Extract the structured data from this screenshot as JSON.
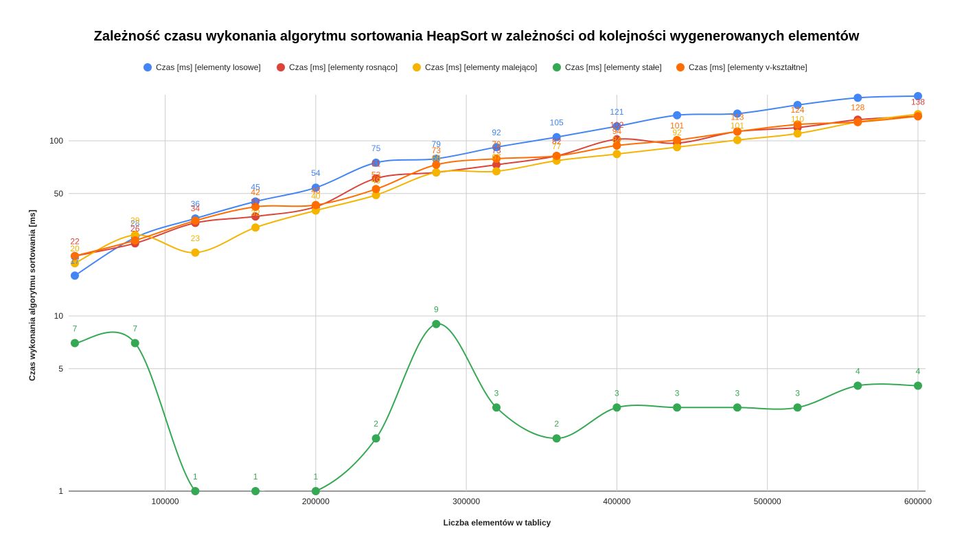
{
  "chart_data": {
    "type": "line",
    "title": "Zależność czasu wykonania algorytmu sortowania HeapSort w zależności od kolejności wygenerowanych elementów",
    "xlabel": "Liczba elementów w tablicy",
    "ylabel": "Czas wykonania algorytmu sortowania [ms]",
    "yscale": "log",
    "ylim": [
      1,
      150
    ],
    "xlim": [
      40000,
      600000
    ],
    "x": [
      40000,
      80000,
      120000,
      160000,
      200000,
      240000,
      280000,
      320000,
      360000,
      400000,
      440000,
      480000,
      520000,
      560000,
      600000
    ],
    "x_ticks": [
      100000,
      200000,
      300000,
      400000,
      500000,
      600000
    ],
    "x_tick_labels": [
      "100000",
      "200000",
      "300000",
      "400000",
      "500000",
      "600000"
    ],
    "y_ticks": [
      1,
      5,
      10,
      50,
      100
    ],
    "y_tick_labels": [
      "1",
      "5",
      "10",
      "50",
      "100"
    ],
    "grid": true,
    "legend_position": "top",
    "series": [
      {
        "name": "Czas [ms] [elementy losowe]",
        "color": "#4285f4",
        "values": [
          17,
          28,
          36,
          45,
          54,
          75,
          79,
          92,
          105,
          121,
          140,
          143,
          160,
          176,
          180
        ],
        "labels": [
          "17",
          "28",
          "36",
          "45",
          "54",
          "75",
          "79",
          "92",
          "105",
          "121",
          "",
          "",
          "",
          "",
          ""
        ]
      },
      {
        "name": "Czas [ms] [elementy rosnąco]",
        "color": "#db4437",
        "values": [
          22,
          26,
          34,
          37,
          42,
          61,
          66,
          73,
          82,
          102,
          97,
          113,
          119,
          132,
          138
        ],
        "labels": [
          "22",
          "26",
          "34",
          "37",
          "",
          "61",
          "",
          "73",
          "82",
          "102",
          "",
          "",
          "",
          "",
          "138"
        ]
      },
      {
        "name": "Czas [ms] [elementy malejąco]",
        "color": "#f4b400",
        "values": [
          20,
          29,
          23,
          32,
          40,
          49,
          66,
          67,
          77,
          84,
          92,
          101,
          110,
          128,
          142
        ],
        "labels": [
          "20",
          "29",
          "23",
          "32",
          "40",
          "49",
          "66",
          "67",
          "77",
          "84",
          "92",
          "101",
          "110",
          "",
          ""
        ]
      },
      {
        "name": "Czas [ms] [elementy stałe]",
        "color": "#34a853",
        "values": [
          7,
          7,
          1,
          1,
          1,
          2,
          9,
          3,
          2,
          3,
          3,
          3,
          3,
          4,
          4
        ],
        "labels": [
          "7",
          "7",
          "1",
          "1",
          "1",
          "2",
          "9",
          "3",
          "2",
          "3",
          "3",
          "3",
          "3",
          "4",
          "4"
        ]
      },
      {
        "name": "Czas [ms] [elementy v-kształtne]",
        "color": "#ff6d01",
        "values": [
          22,
          27,
          35,
          42,
          43,
          53,
          73,
          79,
          82,
          94,
          101,
          113,
          124,
          128,
          138
        ],
        "labels": [
          "",
          "",
          "",
          "42",
          "43",
          "53",
          "73",
          "79",
          "",
          "94",
          "101",
          "113",
          "124",
          "128",
          ""
        ]
      }
    ]
  }
}
